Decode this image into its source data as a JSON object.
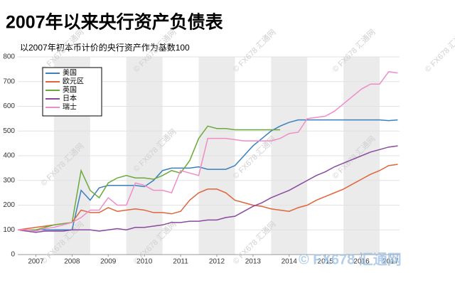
{
  "chart_data": {
    "type": "line",
    "title": "2007年以来央行资产负债表",
    "subtitle": "以2007年初本币计价的央行资产作为基数100",
    "watermark": "© FX678 汇通网",
    "x": [
      2007,
      2007.25,
      2007.5,
      2007.75,
      2008,
      2008.25,
      2008.5,
      2008.75,
      2009,
      2009.25,
      2009.5,
      2009.75,
      2010,
      2010.25,
      2010.5,
      2010.75,
      2011,
      2011.25,
      2011.5,
      2011.75,
      2012,
      2012.25,
      2012.5,
      2012.75,
      2013,
      2013.25,
      2013.5,
      2013.75,
      2014,
      2014.25,
      2014.5,
      2014.75,
      2015,
      2015.25,
      2015.5,
      2015.75,
      2016,
      2016.25,
      2016.5,
      2016.75,
      2017,
      2017.25,
      2017.5
    ],
    "xlim": [
      2007,
      2017.55
    ],
    "xticks": [
      {
        "value": 2007.5,
        "label": "2007"
      },
      {
        "value": 2008.5,
        "label": "2008"
      },
      {
        "value": 2009.5,
        "label": "2009"
      },
      {
        "value": 2010.5,
        "label": "2010"
      },
      {
        "value": 2011.5,
        "label": "2011"
      },
      {
        "value": 2012.5,
        "label": "2012"
      },
      {
        "value": 2013.5,
        "label": "2013"
      },
      {
        "value": 2014.5,
        "label": "2014"
      },
      {
        "value": 2015.5,
        "label": "2015"
      },
      {
        "value": 2016.5,
        "label": "2016"
      },
      {
        "value": 2017.3,
        "label": "2017"
      }
    ],
    "ylim": [
      0,
      800
    ],
    "yticks": [
      0,
      100,
      200,
      300,
      400,
      500,
      600,
      700,
      800
    ],
    "grid": true,
    "shade_bands": [
      [
        2008,
        2009
      ],
      [
        2010,
        2011
      ],
      [
        2012,
        2013
      ],
      [
        2014,
        2015
      ],
      [
        2016,
        2017
      ]
    ],
    "legend": "upper left",
    "series": [
      {
        "name": "美国",
        "color": "#3b7fbf",
        "values": [
          100,
          100,
          100,
          100,
          100,
          100,
          100,
          260,
          220,
          270,
          280,
          280,
          280,
          280,
          275,
          300,
          340,
          350,
          350,
          350,
          355,
          345,
          345,
          345,
          360,
          400,
          440,
          470,
          500,
          520,
          535,
          545,
          545,
          545,
          545,
          545,
          545,
          545,
          545,
          545,
          545,
          542,
          545
        ]
      },
      {
        "name": "欧元区",
        "color": "#e0643c",
        "values": [
          100,
          105,
          110,
          115,
          120,
          125,
          130,
          180,
          170,
          170,
          190,
          175,
          180,
          185,
          180,
          170,
          170,
          165,
          175,
          220,
          250,
          265,
          265,
          250,
          220,
          210,
          200,
          195,
          185,
          180,
          175,
          190,
          200,
          220,
          235,
          250,
          265,
          285,
          305,
          325,
          340,
          360,
          365
        ]
      },
      {
        "name": "英国",
        "color": "#6aaa3c",
        "values": [
          100,
          100,
          100,
          110,
          120,
          125,
          130,
          340,
          260,
          230,
          290,
          310,
          320,
          310,
          310,
          305,
          320,
          340,
          330,
          380,
          470,
          520,
          510,
          510,
          505,
          505,
          505,
          505,
          505,
          505,
          null,
          null,
          null,
          null,
          null,
          null,
          null,
          null,
          null,
          null,
          null,
          null,
          null
        ]
      },
      {
        "name": "日本",
        "color": "#8a4aa0",
        "values": [
          100,
          95,
          90,
          95,
          95,
          95,
          100,
          100,
          100,
          95,
          100,
          105,
          100,
          110,
          110,
          115,
          120,
          130,
          130,
          135,
          135,
          140,
          140,
          150,
          155,
          175,
          195,
          210,
          230,
          245,
          260,
          280,
          300,
          320,
          335,
          355,
          370,
          385,
          400,
          415,
          425,
          435,
          440
        ]
      },
      {
        "name": "瑞士",
        "color": "#f08cc8",
        "values": [
          100,
          100,
          95,
          105,
          110,
          120,
          130,
          150,
          180,
          180,
          230,
          200,
          200,
          290,
          280,
          260,
          260,
          250,
          340,
          330,
          320,
          470,
          470,
          470,
          465,
          460,
          460,
          460,
          460,
          470,
          490,
          495,
          550,
          555,
          560,
          580,
          610,
          640,
          670,
          690,
          690,
          740,
          735
        ]
      }
    ]
  }
}
